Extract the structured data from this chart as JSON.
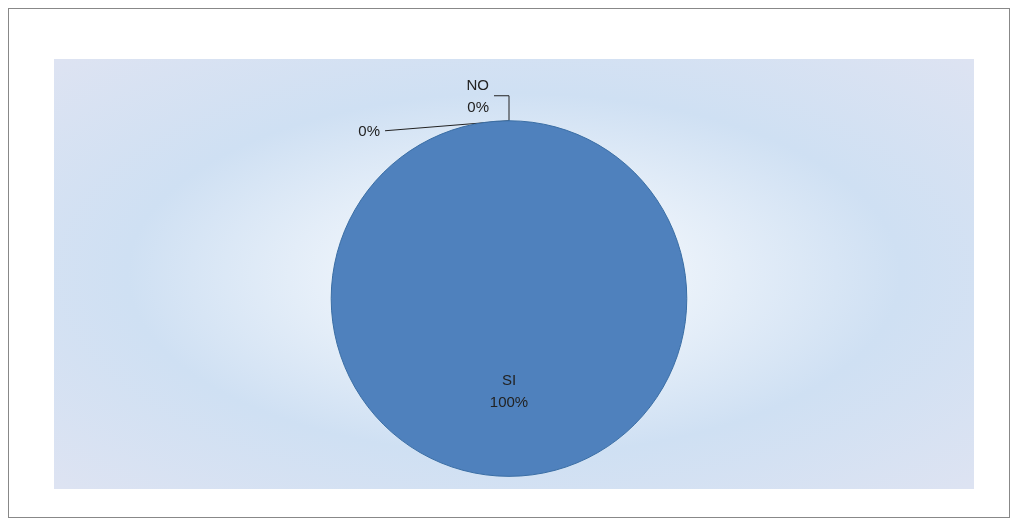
{
  "chart_data": {
    "type": "pie",
    "categories": [
      null,
      "NO",
      "SI"
    ],
    "values": [
      0,
      0,
      100
    ],
    "colors": [
      "#c0504d",
      "#9bbb59",
      "#4f81bd"
    ],
    "value_labels": [
      "0%",
      "0%",
      "100%"
    ],
    "legend": false
  }
}
